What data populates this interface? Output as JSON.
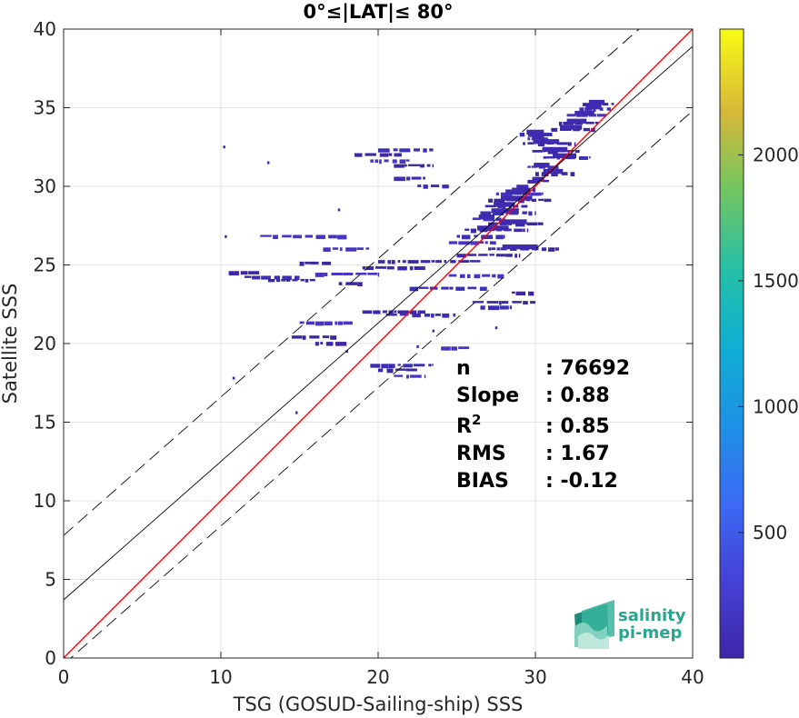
{
  "chart_data": {
    "type": "heatmap",
    "title": "0°≤|LAT|≤ 80°",
    "xlabel": "TSG (GOSUD-Sailing-ship) SSS",
    "ylabel": "Satellite SSS",
    "xlim": [
      0,
      40
    ],
    "ylim": [
      0,
      40
    ],
    "xticks": [
      "0",
      "10",
      "20",
      "30",
      "40"
    ],
    "yticks": [
      "0",
      "5",
      "10",
      "15",
      "20",
      "25",
      "30",
      "35",
      "40"
    ],
    "grid": true,
    "colorbar": {
      "range": [
        1,
        2500
      ],
      "ticks": [
        "500",
        "1000",
        "1500",
        "2000"
      ],
      "tick_values": [
        500,
        1000,
        1500,
        2000
      ],
      "colormap": "parula"
    },
    "lines": [
      {
        "kind": "one-to-one",
        "color": "#ff0000",
        "style": "solid",
        "slope": 1.0,
        "intercept": 0.0
      },
      {
        "kind": "regression",
        "color": "#000000",
        "style": "solid",
        "slope": 0.88,
        "intercept": 3.7
      },
      {
        "kind": "regression-upper",
        "color": "#000000",
        "style": "dashed",
        "slope": 0.88,
        "intercept": 7.8
      },
      {
        "kind": "regression-lower",
        "color": "#000000",
        "style": "dashed",
        "slope": 0.88,
        "intercept": -0.4
      }
    ],
    "density_segments": [
      [
        33.0,
        35.0,
        35.2
      ],
      [
        32.8,
        34.8,
        34.9
      ],
      [
        32.0,
        34.5,
        34.5
      ],
      [
        31.5,
        34.0,
        34.0
      ],
      [
        31.0,
        33.8,
        33.6
      ],
      [
        29.0,
        31.2,
        33.3
      ],
      [
        29.5,
        31.0,
        33.0
      ],
      [
        29.2,
        32.5,
        32.7
      ],
      [
        29.8,
        33.0,
        32.2
      ],
      [
        30.5,
        33.5,
        31.8
      ],
      [
        29.5,
        31.5,
        31.2
      ],
      [
        30.0,
        32.5,
        30.8
      ],
      [
        29.5,
        31.0,
        30.3
      ],
      [
        28.5,
        30.0,
        29.8
      ],
      [
        27.5,
        30.5,
        29.5
      ],
      [
        27.0,
        31.0,
        29.1
      ],
      [
        26.8,
        29.5,
        28.7
      ],
      [
        26.5,
        30.0,
        28.3
      ],
      [
        26.0,
        28.0,
        27.9
      ],
      [
        27.0,
        30.5,
        27.6
      ],
      [
        25.5,
        29.5,
        27.2
      ],
      [
        25.0,
        28.0,
        26.8
      ],
      [
        24.5,
        27.5,
        26.4
      ],
      [
        27.0,
        31.5,
        26.0
      ],
      [
        25.0,
        29.0,
        25.6
      ],
      [
        20.0,
        23.5,
        32.3
      ],
      [
        19.5,
        22.0,
        31.6
      ],
      [
        21.0,
        23.5,
        31.3
      ],
      [
        18.5,
        21.5,
        32.0
      ],
      [
        21.0,
        23.0,
        30.5
      ],
      [
        12.5,
        18.0,
        26.8
      ],
      [
        13.0,
        16.0,
        24.0
      ],
      [
        10.5,
        12.5,
        24.5
      ],
      [
        11.5,
        15.0,
        24.2
      ],
      [
        16.0,
        20.0,
        24.4
      ],
      [
        20.0,
        26.5,
        25.2
      ],
      [
        19.0,
        23.0,
        24.8
      ],
      [
        22.0,
        27.0,
        23.5
      ],
      [
        24.5,
        28.0,
        24.3
      ],
      [
        26.0,
        30.0,
        22.6
      ],
      [
        19.0,
        23.0,
        22.0
      ],
      [
        20.5,
        25.0,
        21.8
      ],
      [
        15.0,
        18.5,
        21.3
      ],
      [
        14.5,
        17.5,
        20.4
      ],
      [
        16.0,
        18.0,
        20.0
      ],
      [
        19.5,
        23.5,
        18.6
      ],
      [
        21.0,
        23.0,
        17.9
      ],
      [
        20.0,
        22.5,
        18.3
      ],
      [
        28.5,
        30.0,
        23.2
      ],
      [
        26.5,
        28.5,
        22.3
      ],
      [
        16.5,
        19.5,
        26.0
      ],
      [
        15.0,
        17.0,
        25.1
      ],
      [
        17.5,
        19.0,
        23.8
      ],
      [
        22.5,
        24.5,
        30.0
      ],
      [
        24.0,
        26.0,
        19.7
      ]
    ],
    "density_points": [
      [
        10.2,
        32.5
      ],
      [
        10.3,
        26.8
      ],
      [
        10.8,
        17.8
      ],
      [
        14.8,
        15.6
      ],
      [
        13.0,
        31.5
      ],
      [
        23.0,
        30.0
      ],
      [
        17.5,
        28.5
      ],
      [
        18.0,
        19.5
      ],
      [
        22.5,
        19.8
      ],
      [
        23.5,
        20.8
      ],
      [
        30.0,
        26.0
      ],
      [
        27.5,
        21.0
      ]
    ],
    "annotations": [
      {
        "label": "n",
        "value": ": 76692"
      },
      {
        "label": "Slope",
        "value": ": 0.88"
      },
      {
        "label": "R",
        "sup": "2",
        "value": ": 0.85"
      },
      {
        "label": "RMS",
        "value": ": 1.67"
      },
      {
        "label": "BIAS",
        "value": ": -0.12"
      }
    ]
  },
  "logo": {
    "line1": "salinity",
    "line2": "pi-mep",
    "color": "#2aa58e"
  }
}
